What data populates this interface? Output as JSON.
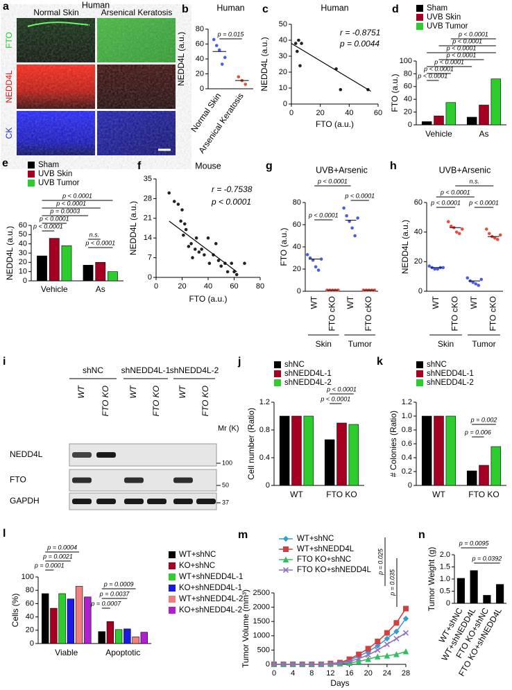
{
  "image_panel": {
    "panel": "a",
    "title": "Human",
    "columns": [
      "Normal Skin",
      "Arsenical Keratosis"
    ],
    "rows": [
      "FTO",
      "NEDD4L",
      "CK"
    ]
  },
  "blot_panel": {
    "panel": "i",
    "groups": [
      "shNC",
      "shNEDD4L-1",
      "shNEDD4L-2"
    ],
    "lanes": [
      "WT",
      "FTO KO",
      "WT",
      "FTO KO",
      "WT",
      "FTO KO"
    ],
    "rows": [
      "NEDD4L",
      "FTO",
      "GAPDH"
    ],
    "mw_label": "Mr (K)",
    "mw_markers": [
      100,
      50,
      37
    ]
  },
  "chart_data": [
    {
      "type": "strip",
      "panel": "b",
      "title": "Human",
      "ylabel": "NEDD4L (a.u.)",
      "categories": [
        "Normal Skin",
        "Arsenical Keratosis"
      ],
      "colors": [
        "#4a5cf0",
        "#e84c3c"
      ],
      "points": [
        [
          66,
          58,
          52,
          33,
          42
        ],
        [
          16,
          11,
          6
        ]
      ],
      "means": [
        50,
        11
      ],
      "ylim": [
        0,
        80
      ],
      "yticks": [
        0,
        20,
        40,
        60,
        80
      ],
      "annotations": [
        "p = 0.015"
      ]
    },
    {
      "type": "scatter",
      "panel": "c",
      "title": "Human",
      "xlabel": "FTO (a.u.)",
      "ylabel": "NEDD4L (a.u.)",
      "x": [
        3,
        5,
        4,
        6,
        7,
        31,
        34,
        53
      ],
      "y": [
        38,
        40,
        33,
        24,
        38,
        22,
        9,
        9
      ],
      "fit": {
        "x": [
          0,
          55
        ],
        "y": [
          38,
          8
        ]
      },
      "xlim": [
        0,
        60
      ],
      "xticks": [
        0,
        20,
        40,
        60
      ],
      "ylim": [
        0,
        50
      ],
      "yticks": [
        0,
        10,
        20,
        30,
        40,
        50
      ],
      "annotations": [
        "r = -0.8751",
        "p = 0.0044"
      ]
    },
    {
      "type": "bar",
      "panel": "d",
      "ylabel": "FTO (a.u.)",
      "categories": [
        "Vehicle",
        "As"
      ],
      "series": [
        {
          "name": "Sham",
          "color": "#000000",
          "values": [
            5,
            12
          ]
        },
        {
          "name": "UVB Skin",
          "color": "#a50021",
          "values": [
            14,
            31
          ]
        },
        {
          "name": "UVB Tumor",
          "color": "#2ecc2e",
          "values": [
            35,
            72
          ]
        }
      ],
      "ylim": [
        0,
        100
      ],
      "yticks": [
        0,
        20,
        40,
        60,
        80,
        100
      ],
      "annotations": [
        "p < 0.0001",
        "p < 0.0001",
        "p < 0.0001",
        "p < 0.0001",
        "p < 0.0001",
        "p < 0.0001",
        "p < 0.0001"
      ]
    },
    {
      "type": "bar",
      "panel": "e",
      "ylabel": "NEDD4L (a.u.)",
      "categories": [
        "Vehicle",
        "As"
      ],
      "series": [
        {
          "name": "Sham",
          "color": "#000000",
          "values": [
            27,
            17
          ]
        },
        {
          "name": "UVB Skin",
          "color": "#a50021",
          "values": [
            46,
            20
          ]
        },
        {
          "name": "UVB Tumor",
          "color": "#2ecc2e",
          "values": [
            38,
            10
          ]
        }
      ],
      "ylim": [
        0,
        60
      ],
      "yticks": [
        0,
        10,
        20,
        30,
        40,
        50,
        60
      ],
      "annotations": [
        "p < 0.0001",
        "p < 0.0001",
        "p = 0.0003",
        "p < 0.0001",
        "p < 0.0001",
        "n.s.",
        "p < 0.0001"
      ]
    },
    {
      "type": "scatter",
      "panel": "f",
      "title": "Mouse",
      "xlabel": "FTO (a.u.)",
      "ylabel": "NEDD4L (a.u.)",
      "x": [
        10,
        14,
        17,
        19,
        20,
        21,
        22,
        23,
        25,
        27,
        28,
        30,
        31,
        33,
        35,
        37,
        40,
        41,
        44,
        46,
        48,
        50,
        53,
        55,
        58,
        60,
        62,
        68
      ],
      "y": [
        30,
        27,
        26,
        20,
        24,
        15,
        19,
        17,
        11,
        12,
        7,
        10,
        14,
        9,
        10,
        8,
        14,
        5,
        8,
        12,
        6,
        4,
        5,
        2,
        5,
        2,
        1,
        5
      ],
      "fit": {
        "x": [
          10,
          62
        ],
        "y": [
          20,
          2
        ]
      },
      "xlim": [
        0,
        80
      ],
      "xticks": [
        0,
        20,
        40,
        60,
        80
      ],
      "ylim": [
        0,
        35
      ],
      "yticks": [
        0,
        7,
        14,
        21,
        28,
        35
      ],
      "annotations": [
        "r = -0.7538",
        "p < 0.0001"
      ]
    },
    {
      "type": "strip",
      "panel": "g",
      "title": "UVB+Arsenic",
      "ylabel": "FTO (a.u.)",
      "categories": [
        "WT",
        "FTO cKO",
        "WT",
        "FTO cKO"
      ],
      "groups": [
        "Skin",
        "Tumor"
      ],
      "colors": [
        "#4a5cf0",
        "#e84c3c",
        "#4a5cf0",
        "#e84c3c"
      ],
      "points": [
        [
          33,
          30,
          28,
          22,
          19,
          29
        ],
        [
          1,
          1,
          1,
          1,
          1
        ],
        [
          75,
          68,
          63,
          57,
          50,
          66
        ],
        [
          1,
          1,
          1,
          1,
          1
        ]
      ],
      "means": [
        29,
        1,
        64,
        1
      ],
      "ylim": [
        0,
        80
      ],
      "yticks": [
        0,
        20,
        40,
        60,
        80
      ],
      "annotations": [
        "p < 0.0001",
        "p < 0.0001",
        "p < 0.0001"
      ]
    },
    {
      "type": "strip",
      "panel": "h",
      "title": "UVB+Arsenic",
      "ylabel": "NEDD4L (a.u.)",
      "categories": [
        "WT",
        "FTO cKO",
        "WT",
        "FTO cKO"
      ],
      "groups": [
        "Skin",
        "Tumor"
      ],
      "colors": [
        "#4a5cf0",
        "#e84c3c",
        "#4a5cf0",
        "#e84c3c"
      ],
      "points": [
        [
          17,
          16,
          15,
          15,
          16,
          16
        ],
        [
          47,
          44,
          43,
          40,
          39,
          42
        ],
        [
          9,
          7,
          6,
          5,
          4,
          8
        ],
        [
          42,
          39,
          37,
          36,
          35,
          38
        ]
      ],
      "means": [
        16,
        43,
        7,
        37
      ],
      "ylim": [
        0,
        60
      ],
      "yticks": [
        0,
        20,
        40,
        60
      ],
      "annotations": [
        "n.s.",
        "p < 0.0001",
        "p < 0.0001",
        "p < 0.0001"
      ]
    },
    {
      "type": "bar",
      "panel": "j",
      "ylabel": "Cell number (Ratio)",
      "categories": [
        "WT",
        "FTO KO"
      ],
      "series": [
        {
          "name": "shNC",
          "color": "#000000",
          "values": [
            1.0,
            0.66
          ]
        },
        {
          "name": "shNEDD4L-1",
          "color": "#a50021",
          "values": [
            1.0,
            0.9
          ]
        },
        {
          "name": "shNEDD4L-2",
          "color": "#2ecc2e",
          "values": [
            1.0,
            0.88
          ]
        }
      ],
      "ylim": [
        0,
        1.2
      ],
      "yticks": [
        0,
        0.4,
        0.8,
        1.2
      ],
      "annotations": [
        "p < 0.0001",
        "p < 0.0001"
      ]
    },
    {
      "type": "bar",
      "panel": "k",
      "ylabel": "# Colonies (Ratio)",
      "categories": [
        "WT",
        "FTO KO"
      ],
      "series": [
        {
          "name": "shNC",
          "color": "#000000",
          "values": [
            1.0,
            0.21
          ]
        },
        {
          "name": "shNEDD4L-1",
          "color": "#a50021",
          "values": [
            1.0,
            0.29
          ]
        },
        {
          "name": "shNEDD4L-2",
          "color": "#2ecc2e",
          "values": [
            1.0,
            0.56
          ]
        }
      ],
      "ylim": [
        0,
        1.2
      ],
      "yticks": [
        0,
        0.2,
        0.4,
        0.6,
        0.8,
        {
          "value": 1,
          "label": "1.0"
        },
        1.2
      ],
      "annotations": [
        "p = 0.002",
        "p = 0.006"
      ]
    },
    {
      "type": "bar",
      "panel": "l",
      "ylabel": "Cells (%)",
      "categories": [
        "Viable",
        "Apoptotic"
      ],
      "series": [
        {
          "name": "WT+shNC",
          "color": "#000000",
          "values": [
            75,
            18
          ]
        },
        {
          "name": "KO+shNC",
          "color": "#a50021",
          "values": [
            53,
            33
          ]
        },
        {
          "name": "WT+shNEDD4L-1",
          "color": "#2ecc2e",
          "values": [
            75,
            21
          ]
        },
        {
          "name": "KO+shNEDD4L-1",
          "color": "#1a1ae0",
          "values": [
            67,
            22
          ]
        },
        {
          "name": "WT+shNEDD4L-2",
          "color": "#f08080",
          "values": [
            86,
            10
          ]
        },
        {
          "name": "KO+shNEDD4L-2",
          "color": "#b020d0",
          "values": [
            70,
            17
          ]
        }
      ],
      "ylim": [
        0,
        100
      ],
      "yticks": [
        0,
        20,
        40,
        60,
        80,
        100
      ],
      "annotations": [
        "p = 0.0004",
        "p = 0.0021",
        "p = 0.0001",
        "p = 0.0009",
        "p = 0.0037",
        "p = 0.0007"
      ]
    },
    {
      "type": "line",
      "panel": "m",
      "xlabel": "Days",
      "ylabel": "Tumor Volume (mm³)",
      "x": [
        0,
        2,
        4,
        6,
        8,
        10,
        12,
        14,
        16,
        18,
        20,
        22,
        24,
        26,
        28
      ],
      "series": [
        {
          "name": "WT+shNC",
          "color": "#3a9bd0",
          "values": [
            0,
            0,
            0,
            0,
            0,
            0,
            20,
            50,
            150,
            280,
            450,
            650,
            900,
            1150,
            1600
          ]
        },
        {
          "name": "WT+shNEDD4L",
          "color": "#d04040",
          "values": [
            0,
            0,
            0,
            0,
            0,
            0,
            30,
            60,
            180,
            350,
            550,
            800,
            1100,
            1450,
            1950
          ]
        },
        {
          "name": "FTO KO+shNC",
          "color": "#30c060",
          "values": [
            0,
            0,
            0,
            0,
            0,
            0,
            10,
            20,
            50,
            100,
            180,
            270,
            300,
            350,
            450
          ]
        },
        {
          "name": "FTO KO+shNEDD4L",
          "color": "#9070c0",
          "values": [
            0,
            0,
            0,
            0,
            0,
            0,
            15,
            40,
            100,
            200,
            330,
            500,
            700,
            900,
            1100
          ]
        }
      ],
      "xlim": [
        0,
        28
      ],
      "xticks": [
        0,
        4,
        8,
        12,
        16,
        20,
        24,
        28
      ],
      "ylim": [
        0,
        2500
      ],
      "yticks": [
        0,
        500,
        1000,
        1500,
        2000,
        2500
      ],
      "annotations": [
        "p = 0.025",
        "p = 0.035"
      ]
    },
    {
      "type": "bar",
      "panel": "n",
      "ylabel": "Tumor Weight (g)",
      "categories": [
        "WT+shNC",
        "WT+shNEDD4L",
        "FTO KO+shNC",
        "FTO KO+shNEDD4L"
      ],
      "color": "#000000",
      "values": [
        1.03,
        1.35,
        0.33,
        0.78
      ],
      "ylim": [
        0,
        2
      ],
      "yticks": [
        0,
        0.5,
        {
          "value": 1,
          "label": "1.0"
        },
        1.5,
        {
          "value": 2,
          "label": "2.0"
        }
      ],
      "annotations": [
        "p = 0.0095",
        "p = 0.0392"
      ]
    }
  ]
}
